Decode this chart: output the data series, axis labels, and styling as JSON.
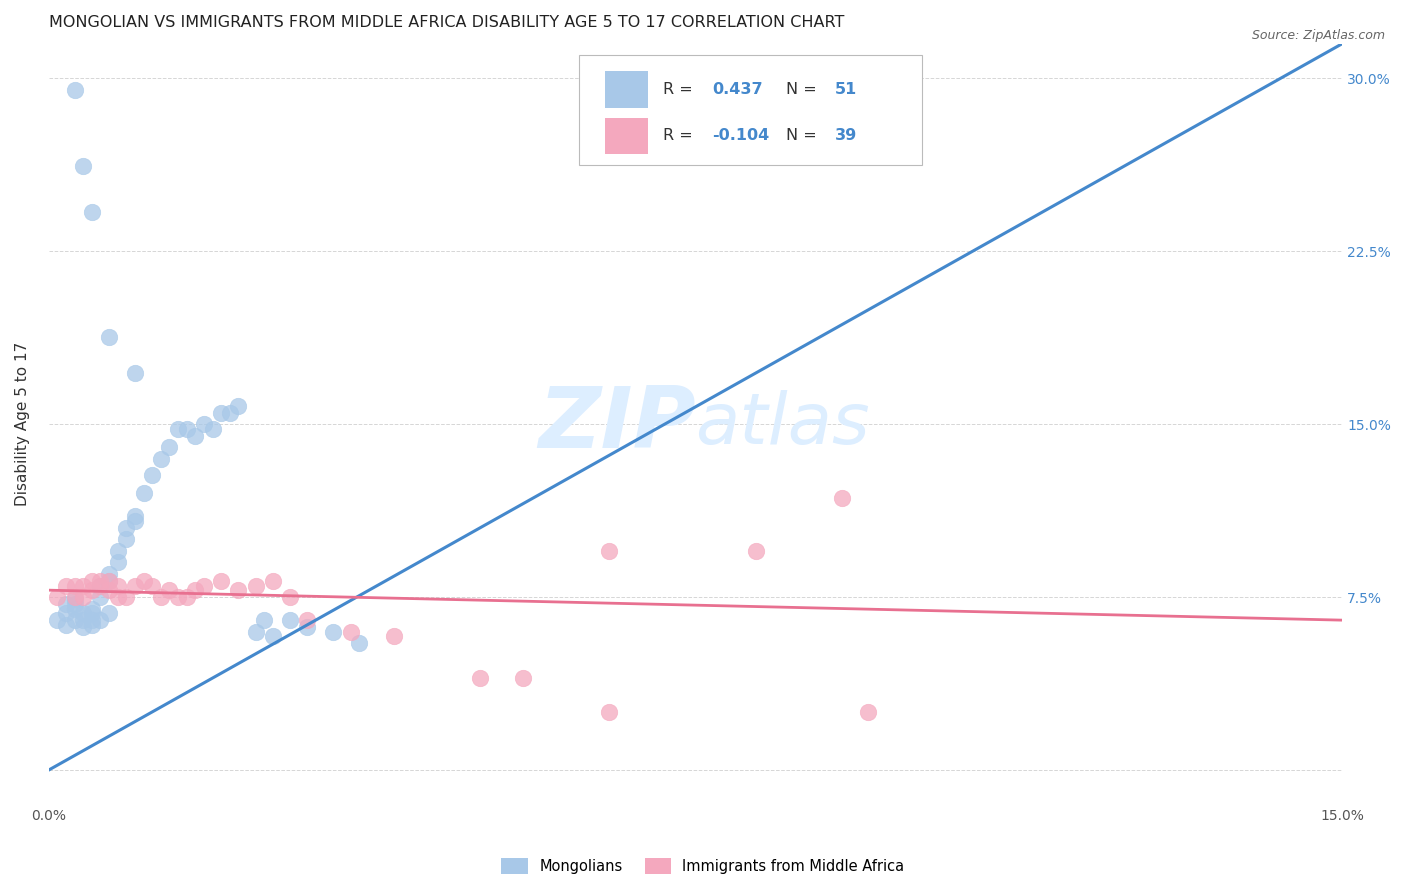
{
  "title": "MONGOLIAN VS IMMIGRANTS FROM MIDDLE AFRICA DISABILITY AGE 5 TO 17 CORRELATION CHART",
  "source": "Source: ZipAtlas.com",
  "ylabel": "Disability Age 5 to 17",
  "xlim": [
    0.0,
    0.15
  ],
  "ylim": [
    -0.015,
    0.315
  ],
  "ytick_positions": [
    0.0,
    0.075,
    0.15,
    0.225,
    0.3
  ],
  "ytick_labels": [
    "",
    "7.5%",
    "15.0%",
    "22.5%",
    "30.0%"
  ],
  "xtick_positions": [
    0.0,
    0.025,
    0.05,
    0.075,
    0.1,
    0.125,
    0.15
  ],
  "xtick_labels": [
    "0.0%",
    "",
    "",
    "",
    "",
    "",
    "15.0%"
  ],
  "mongolian_color": "#a8c8e8",
  "immigrant_color": "#f4a8be",
  "line1_color": "#4488cc",
  "line2_color": "#e87090",
  "watermark_color": "#ddeeff",
  "background_color": "#ffffff",
  "grid_color": "#cccccc",
  "blue_line_x": [
    0.0,
    0.15
  ],
  "blue_line_y": [
    0.0,
    0.315
  ],
  "pink_line_x": [
    0.0,
    0.15
  ],
  "pink_line_y": [
    0.078,
    0.065
  ],
  "mongolian_x": [
    0.001,
    0.002,
    0.002,
    0.002,
    0.003,
    0.003,
    0.003,
    0.003,
    0.004,
    0.004,
    0.004,
    0.005,
    0.005,
    0.005,
    0.005,
    0.006,
    0.006,
    0.006,
    0.007,
    0.007,
    0.007,
    0.008,
    0.008,
    0.009,
    0.009,
    0.01,
    0.01,
    0.011,
    0.012,
    0.013,
    0.014,
    0.015,
    0.016,
    0.017,
    0.018,
    0.019,
    0.02,
    0.021,
    0.022,
    0.024,
    0.026,
    0.028,
    0.03,
    0.033,
    0.036,
    0.003,
    0.004,
    0.005,
    0.007,
    0.01,
    0.025
  ],
  "mongolian_y": [
    0.065,
    0.063,
    0.068,
    0.072,
    0.07,
    0.072,
    0.074,
    0.065,
    0.068,
    0.065,
    0.062,
    0.068,
    0.07,
    0.065,
    0.063,
    0.075,
    0.08,
    0.065,
    0.082,
    0.085,
    0.068,
    0.09,
    0.095,
    0.1,
    0.105,
    0.11,
    0.108,
    0.12,
    0.128,
    0.135,
    0.14,
    0.148,
    0.148,
    0.145,
    0.15,
    0.148,
    0.155,
    0.155,
    0.158,
    0.06,
    0.058,
    0.065,
    0.062,
    0.06,
    0.055,
    0.295,
    0.262,
    0.242,
    0.188,
    0.172,
    0.065
  ],
  "immigrant_x": [
    0.001,
    0.002,
    0.003,
    0.003,
    0.004,
    0.004,
    0.005,
    0.005,
    0.006,
    0.006,
    0.007,
    0.007,
    0.008,
    0.008,
    0.009,
    0.01,
    0.011,
    0.012,
    0.013,
    0.014,
    0.015,
    0.016,
    0.017,
    0.018,
    0.02,
    0.022,
    0.024,
    0.026,
    0.028,
    0.03,
    0.035,
    0.04,
    0.05,
    0.065,
    0.082,
    0.092,
    0.055,
    0.065,
    0.095
  ],
  "immigrant_y": [
    0.075,
    0.08,
    0.075,
    0.08,
    0.08,
    0.075,
    0.082,
    0.078,
    0.08,
    0.082,
    0.078,
    0.082,
    0.08,
    0.075,
    0.075,
    0.08,
    0.082,
    0.08,
    0.075,
    0.078,
    0.075,
    0.075,
    0.078,
    0.08,
    0.082,
    0.078,
    0.08,
    0.082,
    0.075,
    0.065,
    0.06,
    0.058,
    0.04,
    0.095,
    0.095,
    0.118,
    0.04,
    0.025,
    0.025
  ]
}
